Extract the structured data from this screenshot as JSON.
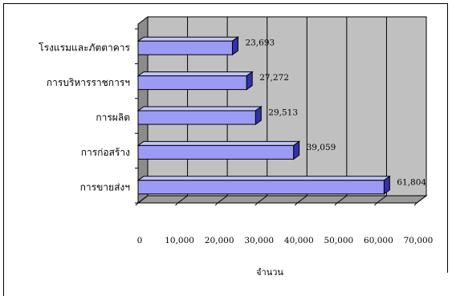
{
  "chart_data": {
    "type": "bar",
    "orientation": "horizontal",
    "style": "3d",
    "categories": [
      "โรงแรมและภัตตาคาร",
      "การบริหารราชการฯ",
      "การผลิต",
      "การก่อสร้าง",
      "การขายส่งฯ"
    ],
    "values": [
      23693,
      27272,
      29513,
      39059,
      61804
    ],
    "data_labels": [
      "23,693",
      "27,272",
      "29,513",
      "39,059",
      "61,804"
    ],
    "x_ticks": [
      "0",
      "10,000",
      "20,000",
      "30,000",
      "40,000",
      "50,000",
      "60,000",
      "70,000"
    ],
    "xlim": [
      0,
      70000
    ],
    "xlabel": "จำนวน",
    "grid": true,
    "colors": {
      "bar_front": "#9b9bf5",
      "bar_top": "#c4c4ff",
      "bar_side": "#3232a8",
      "bar_outline": "#000000",
      "wall": "#c0c0c0",
      "floor": "#9a9a9a",
      "gridline": "#000000"
    }
  }
}
